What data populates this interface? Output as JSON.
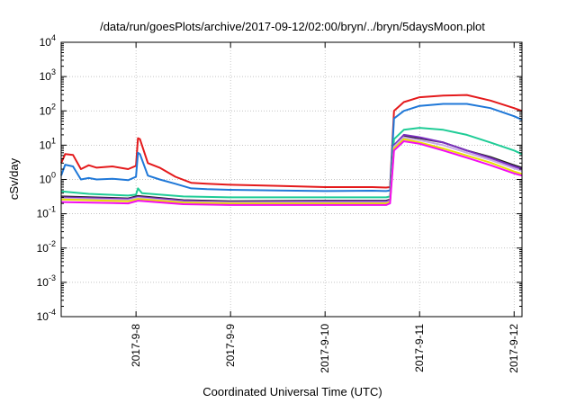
{
  "chart_data": {
    "type": "line",
    "title": "/data/run/goesPlots/archive/2017-09-12/02:00/bryn/../bryn/5daysMoon.plot",
    "xlabel": "Coordinated Universal Time (UTC)",
    "ylabel": "cSv/day",
    "yscale": "log",
    "ylim": [
      0.0001,
      10000
    ],
    "xlim": [
      "2017-09-07 05:00",
      "2017-09-12 02:00"
    ],
    "xticks": [
      "2017-9-8",
      "2017-9-9",
      "2017-9-10",
      "2017-9-11",
      "2017-9-12"
    ],
    "yticks": [
      {
        "base": "10",
        "exp": "-4"
      },
      {
        "base": "10",
        "exp": "-3"
      },
      {
        "base": "10",
        "exp": "-2"
      },
      {
        "base": "10",
        "exp": "-1"
      },
      {
        "base": "10",
        "exp": "0"
      },
      {
        "base": "10",
        "exp": "1"
      },
      {
        "base": "10",
        "exp": "2"
      },
      {
        "base": "10",
        "exp": "3"
      },
      {
        "base": "10",
        "exp": "4"
      }
    ],
    "grid": true,
    "legend": "none",
    "series": [
      {
        "color": "#e41a1c",
        "x": [
          "2017-09-07 05:00",
          "2017-09-07 06:00",
          "2017-09-07 08:00",
          "2017-09-07 10:00",
          "2017-09-07 12:00",
          "2017-09-07 14:00",
          "2017-09-07 18:00",
          "2017-09-07 22:00",
          "2017-09-08 00:00",
          "2017-09-08 00:30",
          "2017-09-08 01:00",
          "2017-09-08 03:00",
          "2017-09-08 06:00",
          "2017-09-08 10:00",
          "2017-09-08 14:00",
          "2017-09-08 18:00",
          "2017-09-09 00:00",
          "2017-09-09 12:00",
          "2017-09-10 00:00",
          "2017-09-10 12:00",
          "2017-09-10 15:30",
          "2017-09-10 16:30",
          "2017-09-10 17:30",
          "2017-09-10 20:00",
          "2017-09-11 00:00",
          "2017-09-11 06:00",
          "2017-09-11 12:00",
          "2017-09-11 18:00",
          "2017-09-12 00:00",
          "2017-09-12 02:00"
        ],
        "y": [
          3.0,
          5.5,
          5.2,
          2.0,
          2.6,
          2.2,
          2.4,
          2.0,
          2.5,
          16.0,
          15.0,
          3.0,
          2.2,
          1.2,
          0.8,
          0.75,
          0.7,
          0.65,
          0.6,
          0.6,
          0.58,
          0.6,
          100,
          180,
          250,
          280,
          290,
          200,
          120,
          100
        ]
      },
      {
        "color": "#1f78d8",
        "x": [
          "2017-09-07 05:00",
          "2017-09-07 06:00",
          "2017-09-07 08:00",
          "2017-09-07 10:00",
          "2017-09-07 12:00",
          "2017-09-07 14:00",
          "2017-09-07 18:00",
          "2017-09-07 22:00",
          "2017-09-08 00:00",
          "2017-09-08 00:30",
          "2017-09-08 01:00",
          "2017-09-08 03:00",
          "2017-09-08 06:00",
          "2017-09-08 10:00",
          "2017-09-08 14:00",
          "2017-09-08 18:00",
          "2017-09-09 00:00",
          "2017-09-09 12:00",
          "2017-09-10 00:00",
          "2017-09-10 12:00",
          "2017-09-10 15:30",
          "2017-09-10 16:30",
          "2017-09-10 17:30",
          "2017-09-10 20:00",
          "2017-09-11 00:00",
          "2017-09-11 06:00",
          "2017-09-11 12:00",
          "2017-09-11 18:00",
          "2017-09-12 00:00",
          "2017-09-12 02:00"
        ],
        "y": [
          1.3,
          2.7,
          2.4,
          1.0,
          1.1,
          1.0,
          1.05,
          0.95,
          1.2,
          6.0,
          5.5,
          1.3,
          1.0,
          0.75,
          0.55,
          0.52,
          0.5,
          0.48,
          0.46,
          0.47,
          0.46,
          0.48,
          60,
          100,
          140,
          160,
          160,
          120,
          70,
          55
        ]
      },
      {
        "color": "#1fcc96",
        "x": [
          "2017-09-07 05:00",
          "2017-09-07 12:00",
          "2017-09-07 22:00",
          "2017-09-08 00:00",
          "2017-09-08 00:30",
          "2017-09-08 01:30",
          "2017-09-08 12:00",
          "2017-09-09 00:00",
          "2017-09-10 00:00",
          "2017-09-10 15:30",
          "2017-09-10 16:30",
          "2017-09-10 17:30",
          "2017-09-10 20:00",
          "2017-09-11 00:00",
          "2017-09-11 06:00",
          "2017-09-11 12:00",
          "2017-09-11 18:00",
          "2017-09-12 00:00",
          "2017-09-12 02:00"
        ],
        "y": [
          0.45,
          0.38,
          0.34,
          0.36,
          0.55,
          0.4,
          0.32,
          0.3,
          0.3,
          0.3,
          0.32,
          15,
          28,
          32,
          28,
          20,
          12,
          7,
          5.5
        ]
      },
      {
        "color": "#1e1e1e",
        "x": [
          "2017-09-07 05:00",
          "2017-09-07 22:00",
          "2017-09-08 00:30",
          "2017-09-08 12:00",
          "2017-09-09 00:00",
          "2017-09-10 00:00",
          "2017-09-10 15:30",
          "2017-09-10 16:30",
          "2017-09-10 17:30",
          "2017-09-10 20:00",
          "2017-09-11 00:00",
          "2017-09-11 06:00",
          "2017-09-11 12:00",
          "2017-09-11 18:00",
          "2017-09-12 00:00",
          "2017-09-12 02:00"
        ],
        "y": [
          0.32,
          0.28,
          0.33,
          0.25,
          0.23,
          0.24,
          0.24,
          0.26,
          10,
          18,
          16,
          12,
          7,
          4.5,
          2.6,
          2.2
        ]
      },
      {
        "color": "#7b2fbe",
        "x": [
          "2017-09-07 05:00",
          "2017-09-07 22:00",
          "2017-09-08 00:30",
          "2017-09-08 12:00",
          "2017-09-09 00:00",
          "2017-09-10 00:00",
          "2017-09-10 15:30",
          "2017-09-10 16:30",
          "2017-09-10 17:30",
          "2017-09-10 20:00",
          "2017-09-11 00:00",
          "2017-09-11 06:00",
          "2017-09-11 12:00",
          "2017-09-11 18:00",
          "2017-09-12 00:00",
          "2017-09-12 02:00"
        ],
        "y": [
          0.3,
          0.27,
          0.31,
          0.24,
          0.22,
          0.23,
          0.23,
          0.25,
          10,
          20,
          17,
          12,
          7,
          4.2,
          2.4,
          2.0
        ]
      },
      {
        "color": "#c8a8e8",
        "x": [
          "2017-09-07 05:00",
          "2017-09-07 22:00",
          "2017-09-08 00:30",
          "2017-09-08 12:00",
          "2017-09-09 00:00",
          "2017-09-10 00:00",
          "2017-09-10 15:30",
          "2017-09-10 16:30",
          "2017-09-10 17:30",
          "2017-09-10 20:00",
          "2017-09-11 00:00",
          "2017-09-11 06:00",
          "2017-09-11 12:00",
          "2017-09-11 18:00",
          "2017-09-12 00:00",
          "2017-09-12 02:00"
        ],
        "y": [
          0.28,
          0.25,
          0.29,
          0.22,
          0.21,
          0.21,
          0.21,
          0.23,
          9,
          17,
          14,
          10,
          6,
          3.7,
          2.1,
          1.8
        ]
      },
      {
        "color": "#e8e000",
        "x": [
          "2017-09-07 05:00",
          "2017-09-07 22:00",
          "2017-09-08 00:30",
          "2017-09-08 12:00",
          "2017-09-09 00:00",
          "2017-09-10 00:00",
          "2017-09-10 15:30",
          "2017-09-10 16:30",
          "2017-09-10 17:30",
          "2017-09-10 20:00",
          "2017-09-11 00:00",
          "2017-09-11 06:00",
          "2017-09-11 12:00",
          "2017-09-11 18:00",
          "2017-09-12 00:00",
          "2017-09-12 02:00"
        ],
        "y": [
          0.26,
          0.23,
          0.27,
          0.21,
          0.2,
          0.2,
          0.2,
          0.22,
          8,
          15,
          12,
          8,
          5,
          3.1,
          1.7,
          1.45
        ]
      },
      {
        "color": "#f20df2",
        "x": [
          "2017-09-07 05:00",
          "2017-09-07 22:00",
          "2017-09-08 00:30",
          "2017-09-08 12:00",
          "2017-09-09 00:00",
          "2017-09-10 00:00",
          "2017-09-10 15:30",
          "2017-09-10 16:30",
          "2017-09-10 17:30",
          "2017-09-10 20:00",
          "2017-09-11 00:00",
          "2017-09-11 06:00",
          "2017-09-11 12:00",
          "2017-09-11 18:00",
          "2017-09-12 00:00",
          "2017-09-12 02:00"
        ],
        "y": [
          0.22,
          0.2,
          0.24,
          0.19,
          0.18,
          0.18,
          0.18,
          0.2,
          7,
          13,
          11,
          7,
          4.3,
          2.6,
          1.5,
          1.3
        ]
      }
    ]
  }
}
